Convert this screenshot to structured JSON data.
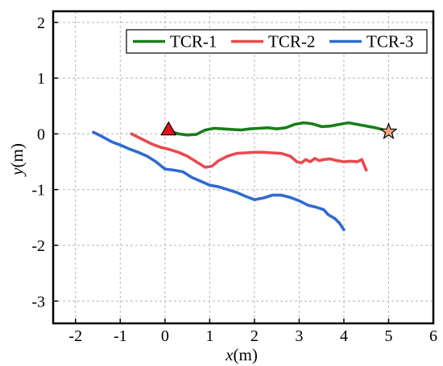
{
  "chart_data": {
    "type": "line",
    "title": "",
    "xlabel": {
      "var": "x",
      "unit": "(m)"
    },
    "ylabel": {
      "var": "y",
      "unit": "(m)"
    },
    "xlim": [
      -2.5,
      6
    ],
    "ylim": [
      -3.4,
      2.2
    ],
    "xticks": [
      "-2",
      "-1",
      "0",
      "1",
      "2",
      "3",
      "4",
      "5",
      "6"
    ],
    "yticks": [
      "2",
      "1",
      "0",
      "-1",
      "-2",
      "-3"
    ],
    "grid": true,
    "legend_position": "top-right",
    "series": [
      {
        "name": "TCR-1",
        "color": "#1a7d1a",
        "x": [
          0.1,
          0.3,
          0.5,
          0.7,
          0.9,
          1.1,
          1.3,
          1.5,
          1.7,
          1.9,
          2.1,
          2.3,
          2.5,
          2.7,
          2.9,
          3.1,
          3.3,
          3.5,
          3.7,
          3.9,
          4.1,
          4.3,
          4.5,
          4.7,
          4.9,
          5.0
        ],
        "y": [
          0.05,
          0.0,
          -0.02,
          -0.01,
          0.07,
          0.1,
          0.09,
          0.08,
          0.07,
          0.09,
          0.1,
          0.11,
          0.09,
          0.11,
          0.17,
          0.2,
          0.18,
          0.13,
          0.14,
          0.17,
          0.2,
          0.17,
          0.14,
          0.11,
          0.07,
          0.04
        ]
      },
      {
        "name": "TCR-2",
        "color": "#e84a4f",
        "x": [
          -0.75,
          -0.5,
          -0.3,
          -0.1,
          0.1,
          0.3,
          0.5,
          0.7,
          0.9,
          1.05,
          1.2,
          1.4,
          1.6,
          1.8,
          2.0,
          2.2,
          2.4,
          2.6,
          2.8,
          2.95,
          3.05,
          3.15,
          3.25,
          3.35,
          3.45,
          3.55,
          3.7,
          3.85,
          4.0,
          4.15,
          4.3,
          4.4,
          4.5
        ],
        "y": [
          0.0,
          -0.1,
          -0.18,
          -0.24,
          -0.28,
          -0.33,
          -0.4,
          -0.5,
          -0.6,
          -0.58,
          -0.48,
          -0.4,
          -0.35,
          -0.34,
          -0.33,
          -0.33,
          -0.34,
          -0.35,
          -0.4,
          -0.5,
          -0.52,
          -0.46,
          -0.5,
          -0.44,
          -0.48,
          -0.46,
          -0.45,
          -0.48,
          -0.5,
          -0.49,
          -0.5,
          -0.46,
          -0.65
        ]
      },
      {
        "name": "TCR-3",
        "color": "#2f6bd0",
        "x": [
          -1.6,
          -1.4,
          -1.2,
          -1.0,
          -0.8,
          -0.6,
          -0.4,
          -0.2,
          0.0,
          0.2,
          0.4,
          0.6,
          0.8,
          1.0,
          1.2,
          1.4,
          1.6,
          1.8,
          2.0,
          2.2,
          2.4,
          2.6,
          2.8,
          3.0,
          3.2,
          3.4,
          3.55,
          3.65,
          3.8,
          3.9,
          4.0
        ],
        "y": [
          0.03,
          -0.05,
          -0.14,
          -0.2,
          -0.27,
          -0.33,
          -0.4,
          -0.5,
          -0.63,
          -0.65,
          -0.68,
          -0.78,
          -0.85,
          -0.92,
          -0.95,
          -1.0,
          -1.05,
          -1.12,
          -1.18,
          -1.15,
          -1.1,
          -1.1,
          -1.14,
          -1.2,
          -1.28,
          -1.32,
          -1.36,
          -1.45,
          -1.52,
          -1.6,
          -1.72
        ]
      }
    ],
    "markers": [
      {
        "shape": "triangle",
        "x": 0.08,
        "y": 0.08,
        "color": "#e8101a"
      },
      {
        "shape": "star",
        "x": 5.0,
        "y": 0.04,
        "color": "#f4a37c"
      }
    ]
  }
}
